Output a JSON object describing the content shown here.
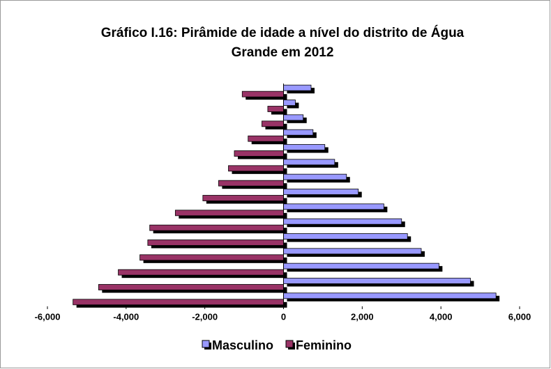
{
  "chart_data": {
    "type": "bar",
    "orientation": "horizontal",
    "title": "Gráfico I.16: Pirâmide de idade a nível do distrito de Água Grande em 2012",
    "categories": [
      null,
      null,
      null,
      null,
      null,
      null,
      null,
      null,
      null,
      null,
      null,
      null,
      null,
      null,
      null
    ],
    "series": [
      {
        "name": "Masculino",
        "color": "#9999ff",
        "values": [
          5400,
          4750,
          3950,
          3500,
          3150,
          3000,
          2550,
          1900,
          1600,
          1300,
          1050,
          750,
          500,
          300,
          700
        ]
      },
      {
        "name": "Feminino",
        "color": "#993366",
        "values": [
          -5350,
          -4700,
          -4200,
          -3650,
          -3450,
          -3400,
          -2750,
          -2050,
          -1650,
          -1400,
          -1250,
          -900,
          -550,
          -400,
          -1050
        ]
      }
    ],
    "xlim": [
      -6000,
      6000
    ],
    "xticks": [
      {
        "value": -6000,
        "label": "-6,000"
      },
      {
        "value": -4000,
        "label": "-4,000"
      },
      {
        "value": -2000,
        "label": "-2,000"
      },
      0,
      {
        "value": 2000,
        "label": "2,000"
      },
      {
        "value": 4000,
        "label": "4,000"
      },
      {
        "value": 6000,
        "label": "6,000"
      }
    ],
    "legend": "bottom"
  }
}
